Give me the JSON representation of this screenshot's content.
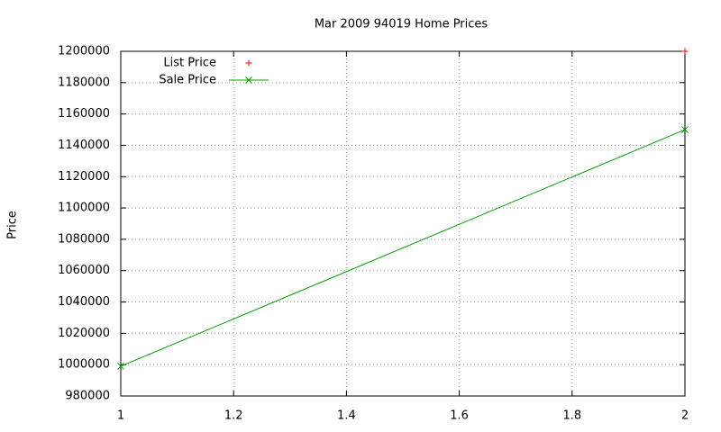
{
  "chart_data": {
    "type": "line",
    "title": "Mar 2009 94019 Home Prices",
    "y_label": "Price",
    "xlim": [
      1,
      2
    ],
    "xticks": [
      1,
      1.2,
      1.4,
      1.6,
      1.8,
      2
    ],
    "ylim": [
      980000,
      1200000
    ],
    "yticks": [
      980000,
      1000000,
      1020000,
      1040000,
      1060000,
      1080000,
      1100000,
      1120000,
      1140000,
      1160000,
      1180000,
      1200000
    ],
    "grid": true,
    "legend": "top-left",
    "series": [
      {
        "name": "List Price",
        "color": "#ff0000",
        "marker": "+",
        "line": false,
        "x": [
          2
        ],
        "values": [
          1200000
        ]
      },
      {
        "name": "Sale Price",
        "color": "#00a000",
        "marker": "x",
        "line": true,
        "x": [
          1,
          2
        ],
        "values": [
          999000,
          1150000
        ]
      }
    ]
  }
}
